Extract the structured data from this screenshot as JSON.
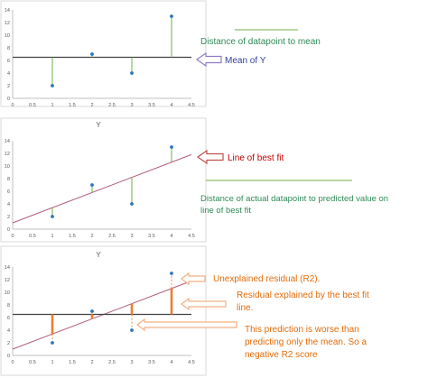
{
  "chart_data": [
    {
      "type": "scatter",
      "title": "",
      "xlim": [
        0,
        4.5
      ],
      "ylim": [
        0,
        14
      ],
      "x_ticks": [
        "0",
        "0.5",
        "1",
        "1.5",
        "2",
        "2.5",
        "3",
        "3.5",
        "4",
        "4.5"
      ],
      "y_ticks": [
        "0",
        "2",
        "4",
        "6",
        "8",
        "10",
        "12",
        "14"
      ],
      "points": [
        {
          "x": 1,
          "y": 2
        },
        {
          "x": 2,
          "y": 7
        },
        {
          "x": 3,
          "y": 4
        },
        {
          "x": 4,
          "y": 13
        }
      ],
      "mean_line": 6.5,
      "residuals_to": "mean",
      "grid": false,
      "colors": {
        "points": "#2e75b6",
        "residual": "#70ad47",
        "mean_line": "#404040"
      }
    },
    {
      "type": "scatter",
      "title": "Y",
      "xlim": [
        0,
        4.5
      ],
      "ylim": [
        0,
        14
      ],
      "x_ticks": [
        "0",
        "0.5",
        "1",
        "1.5",
        "2",
        "2.5",
        "3",
        "3.5",
        "4",
        "4.5"
      ],
      "y_ticks": [
        "0",
        "2",
        "4",
        "6",
        "8",
        "10",
        "12",
        "14"
      ],
      "points": [
        {
          "x": 1,
          "y": 2
        },
        {
          "x": 2,
          "y": 7
        },
        {
          "x": 3,
          "y": 4
        },
        {
          "x": 4,
          "y": 13
        }
      ],
      "fit_line": {
        "slope": 2.4,
        "intercept": 1
      },
      "residuals_to": "fit",
      "grid": false,
      "colors": {
        "points": "#2e75b6",
        "residual": "#70ad47",
        "fit_line": "#b05a78"
      }
    },
    {
      "type": "scatter",
      "title": "Y",
      "xlim": [
        0,
        4.5
      ],
      "ylim": [
        0,
        14
      ],
      "x_ticks": [
        "0",
        "0.5",
        "1",
        "1.5",
        "2",
        "2.5",
        "3",
        "3.5",
        "4",
        "4.5"
      ],
      "y_ticks": [
        "0",
        "2",
        "4",
        "6",
        "8",
        "10",
        "12",
        "14"
      ],
      "points": [
        {
          "x": 1,
          "y": 2
        },
        {
          "x": 2,
          "y": 7
        },
        {
          "x": 3,
          "y": 4
        },
        {
          "x": 4,
          "y": 13
        }
      ],
      "mean_line": 6.5,
      "fit_line": {
        "slope": 2.4,
        "intercept": 1
      },
      "grid": false,
      "colors": {
        "points": "#2e75b6",
        "explained": "#ed7d31",
        "unexplained": "#ed7d31",
        "fit_line": "#b05a78",
        "mean_line": "#404040"
      }
    }
  ],
  "annotations": {
    "p1_distance": "Distance of datapoint to mean",
    "p1_mean": "Mean of Y",
    "p2_fit": "Line of best fit",
    "p2_distance_1": "Distance of actual datapoint to predicted value on",
    "p2_distance_2": "line of best fit",
    "p3_unexplained": "Unexplained residual (R2).",
    "p3_explained_1": "Residual explained by the best fit",
    "p3_explained_2": "line.",
    "p3_worse_1": "This prediction is worse than",
    "p3_worse_2": "predicting only the mean. So a",
    "p3_worse_3": "negative R2 score"
  },
  "colors": {
    "green_text": "#2e8b57",
    "blue_text": "#2f3fa0",
    "red_text": "#c00000",
    "orange_text": "#e36c09",
    "axis": "#bfbfbf",
    "tick_text": "#595959"
  }
}
